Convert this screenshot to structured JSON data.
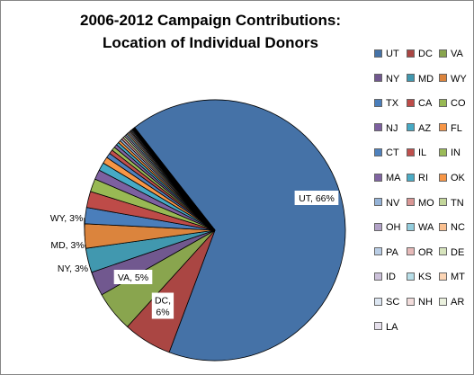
{
  "chart_data": {
    "type": "pie",
    "title": [
      "2006-2012 Campaign  Contributions:",
      "Location of Individual  Donors"
    ],
    "legend_position": "right",
    "slices": [
      {
        "label": "UT",
        "value": 66,
        "color": "#4572A7",
        "data_label": "UT, 66%"
      },
      {
        "label": "DC",
        "value": 6,
        "color": "#AA4643",
        "data_label": "DC, 6%"
      },
      {
        "label": "VA",
        "value": 5,
        "color": "#89A54E",
        "data_label": "VA, 5%"
      },
      {
        "label": "NY",
        "value": 3,
        "color": "#71588F",
        "data_label": "NY, 3%"
      },
      {
        "label": "MD",
        "value": 3,
        "color": "#4198AF",
        "data_label": "MD, 3%"
      },
      {
        "label": "WY",
        "value": 3,
        "color": "#DB843D",
        "data_label": "WY, 3%"
      },
      {
        "label": "TX",
        "value": 2,
        "color": "#4A7EBB"
      },
      {
        "label": "CA",
        "value": 2,
        "color": "#BE4B48"
      },
      {
        "label": "CO",
        "value": 1.6,
        "color": "#98B954"
      },
      {
        "label": "NJ",
        "value": 1.2,
        "color": "#7D60A0"
      },
      {
        "label": "AZ",
        "value": 1,
        "color": "#46AAC5"
      },
      {
        "label": "FL",
        "value": 0.8,
        "color": "#F79646"
      },
      {
        "label": "CT",
        "value": 0.6,
        "color": "#4F81BD"
      },
      {
        "label": "IL",
        "value": 0.5,
        "color": "#C0504D"
      },
      {
        "label": "IN",
        "value": 0.45,
        "color": "#9BBB59"
      },
      {
        "label": "MA",
        "value": 0.4,
        "color": "#8064A2"
      },
      {
        "label": "RI",
        "value": 0.35,
        "color": "#4BACC6"
      },
      {
        "label": "OK",
        "value": 0.3,
        "color": "#F79646"
      },
      {
        "label": "NV",
        "value": 0.28,
        "color": "#95B3D7"
      },
      {
        "label": "MO",
        "value": 0.26,
        "color": "#D99694"
      },
      {
        "label": "TN",
        "value": 0.24,
        "color": "#C3D69B"
      },
      {
        "label": "OH",
        "value": 0.22,
        "color": "#B2A2C7"
      },
      {
        "label": "WA",
        "value": 0.2,
        "color": "#93CDDD"
      },
      {
        "label": "NC",
        "value": 0.18,
        "color": "#FAC090"
      },
      {
        "label": "PA",
        "value": 0.16,
        "color": "#B9CDE5"
      },
      {
        "label": "OR",
        "value": 0.14,
        "color": "#E6B9B8"
      },
      {
        "label": "DE",
        "value": 0.12,
        "color": "#D7E4BD"
      },
      {
        "label": "ID",
        "value": 0.12,
        "color": "#CCC1DA"
      },
      {
        "label": "KS",
        "value": 0.1,
        "color": "#B7DEE8"
      },
      {
        "label": "MT",
        "value": 0.1,
        "color": "#FCD5B5"
      },
      {
        "label": "SC",
        "value": 0.08,
        "color": "#DCE6F2"
      },
      {
        "label": "NH",
        "value": 0.08,
        "color": "#F2DCDB"
      },
      {
        "label": "AR",
        "value": 0.06,
        "color": "#EBF1DE"
      },
      {
        "label": "LA",
        "value": 0.06,
        "color": "#E6E0EC"
      }
    ]
  }
}
